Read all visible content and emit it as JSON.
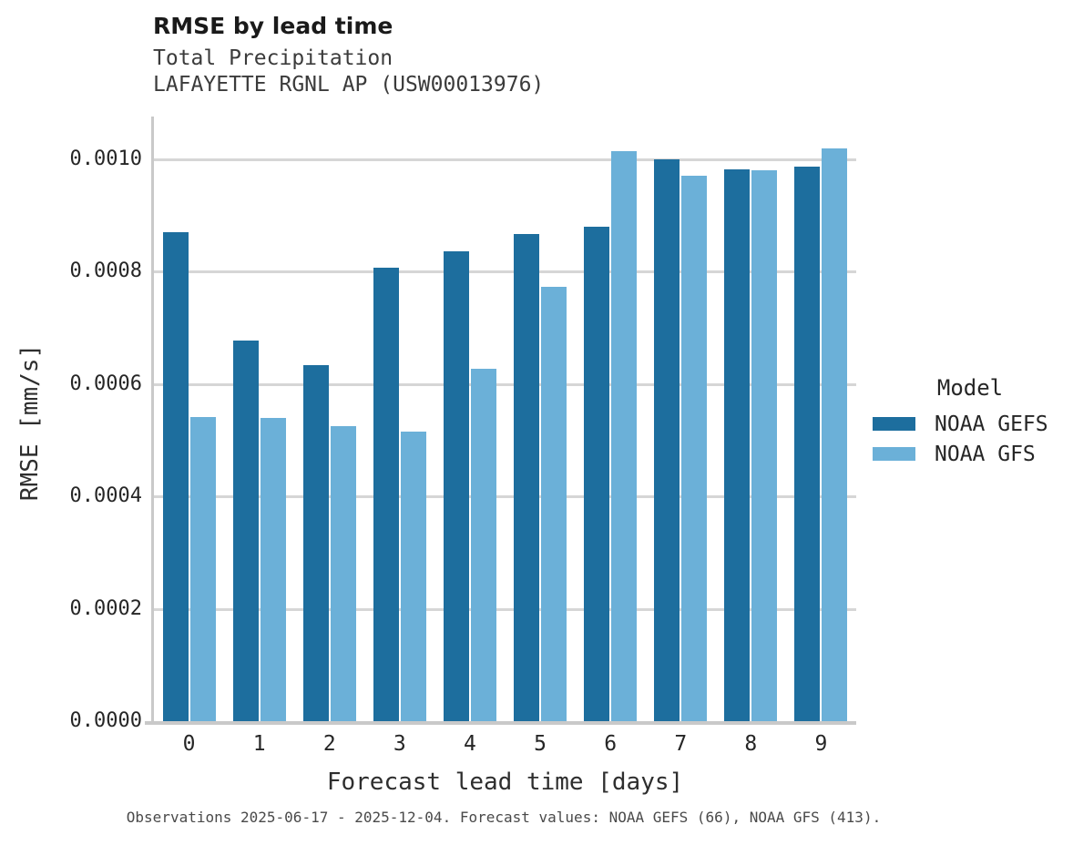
{
  "title": "RMSE by lead time",
  "subtitle": "Total Precipitation",
  "station": "LAFAYETTE RGNL AP (USW00013976)",
  "footer": "Observations 2025-06-17 - 2025-12-04. Forecast values: NOAA GEFS (66), NOAA GFS (413).",
  "colors": {
    "gefs": "#1d6e9e",
    "gfs": "#6bb0d8",
    "gridline": "#d6d6d6",
    "axis": "#c9c9c9"
  },
  "legend": {
    "title": "Model",
    "items": [
      {
        "label": "NOAA GEFS",
        "color": "#1d6e9e"
      },
      {
        "label": "NOAA GFS",
        "color": "#6bb0d8"
      }
    ]
  },
  "chart_data": {
    "type": "bar",
    "title": "RMSE by lead time",
    "subtitle": "Total Precipitation",
    "station": "LAFAYETTE RGNL AP (USW00013976)",
    "categories": [
      "0",
      "1",
      "2",
      "3",
      "4",
      "5",
      "6",
      "7",
      "8",
      "9"
    ],
    "series": [
      {
        "name": "NOAA GEFS",
        "color": "#1d6e9e",
        "values": [
          0.00087,
          0.000677,
          0.000633,
          0.000807,
          0.000836,
          0.000867,
          0.00088,
          0.001,
          0.000982,
          0.000987
        ]
      },
      {
        "name": "NOAA GFS",
        "color": "#6bb0d8",
        "values": [
          0.000541,
          0.00054,
          0.000525,
          0.000515,
          0.000628,
          0.000773,
          0.001015,
          0.000971,
          0.00098,
          0.00102
        ]
      }
    ],
    "xlabel": "Forecast lead time [days]",
    "ylabel": "RMSE [mm/s]",
    "ylim": [
      0,
      0.001057
    ],
    "yticks": [
      0,
      0.0002,
      0.0004,
      0.0006,
      0.0008,
      0.001
    ],
    "ytick_labels": [
      "0.0000",
      "0.0002",
      "0.0004",
      "0.0006",
      "0.0008",
      "0.0010"
    ],
    "grid": true,
    "legend_position": "right",
    "legend_title": "Model",
    "caption": "Observations 2025-06-17 - 2025-12-04. Forecast values: NOAA GEFS (66), NOAA GFS (413)."
  }
}
